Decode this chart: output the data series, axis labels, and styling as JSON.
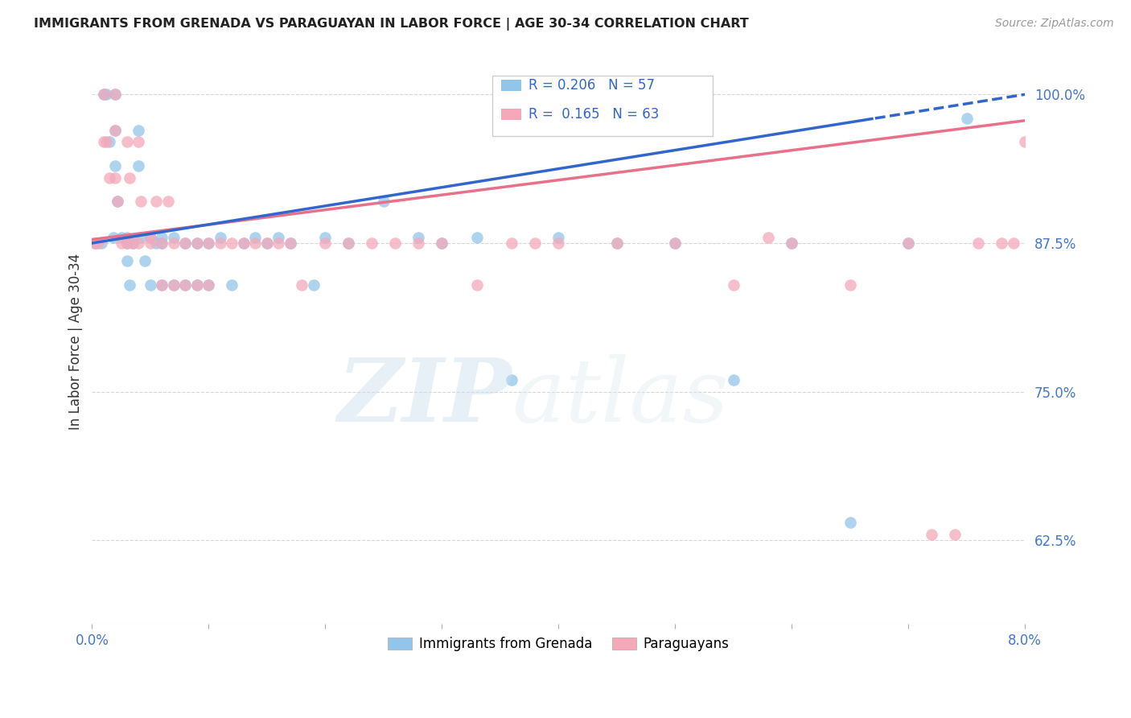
{
  "title": "IMMIGRANTS FROM GRENADA VS PARAGUAYAN IN LABOR FORCE | AGE 30-34 CORRELATION CHART",
  "source": "Source: ZipAtlas.com",
  "ylabel": "In Labor Force | Age 30-34",
  "xlim": [
    0.0,
    0.08
  ],
  "ylim": [
    0.555,
    1.03
  ],
  "xticks": [
    0.0,
    0.01,
    0.02,
    0.03,
    0.04,
    0.05,
    0.06,
    0.07,
    0.08
  ],
  "xticklabels": [
    "0.0%",
    "",
    "",
    "",
    "",
    "",
    "",
    "",
    "8.0%"
  ],
  "yticks": [
    0.625,
    0.75,
    0.875,
    1.0
  ],
  "yticklabels": [
    "62.5%",
    "75.0%",
    "87.5%",
    "100.0%"
  ],
  "blue_R": 0.206,
  "blue_N": 57,
  "pink_R": 0.165,
  "pink_N": 63,
  "blue_color": "#92C5EA",
  "pink_color": "#F4A8BA",
  "blue_label": "Immigrants from Grenada",
  "pink_label": "Paraguayans",
  "blue_line_color": "#3366CC",
  "pink_line_color": "#E8708A",
  "blue_scatter_x": [
    0.0003,
    0.0008,
    0.001,
    0.0012,
    0.0015,
    0.0018,
    0.002,
    0.002,
    0.002,
    0.0022,
    0.0025,
    0.003,
    0.003,
    0.003,
    0.0032,
    0.0035,
    0.004,
    0.004,
    0.0042,
    0.0045,
    0.005,
    0.005,
    0.0055,
    0.006,
    0.006,
    0.006,
    0.007,
    0.007,
    0.008,
    0.008,
    0.009,
    0.009,
    0.01,
    0.01,
    0.011,
    0.012,
    0.013,
    0.014,
    0.015,
    0.016,
    0.017,
    0.019,
    0.02,
    0.022,
    0.025,
    0.028,
    0.03,
    0.033,
    0.036,
    0.04,
    0.045,
    0.05,
    0.055,
    0.06,
    0.065,
    0.07,
    0.075
  ],
  "blue_scatter_y": [
    0.875,
    0.875,
    1.0,
    1.0,
    0.96,
    0.88,
    1.0,
    0.97,
    0.94,
    0.91,
    0.88,
    0.88,
    0.875,
    0.86,
    0.84,
    0.875,
    0.97,
    0.94,
    0.88,
    0.86,
    0.88,
    0.84,
    0.875,
    0.88,
    0.875,
    0.84,
    0.88,
    0.84,
    0.875,
    0.84,
    0.875,
    0.84,
    0.875,
    0.84,
    0.88,
    0.84,
    0.875,
    0.88,
    0.875,
    0.88,
    0.875,
    0.84,
    0.88,
    0.875,
    0.91,
    0.88,
    0.875,
    0.88,
    0.76,
    0.88,
    0.875,
    0.875,
    0.76,
    0.875,
    0.64,
    0.875,
    0.98
  ],
  "pink_scatter_x": [
    0.0002,
    0.0005,
    0.001,
    0.001,
    0.0012,
    0.0015,
    0.002,
    0.002,
    0.002,
    0.0022,
    0.0025,
    0.003,
    0.003,
    0.0032,
    0.0035,
    0.004,
    0.004,
    0.0042,
    0.005,
    0.005,
    0.0055,
    0.006,
    0.006,
    0.0065,
    0.007,
    0.007,
    0.008,
    0.008,
    0.009,
    0.009,
    0.01,
    0.01,
    0.011,
    0.012,
    0.013,
    0.014,
    0.015,
    0.016,
    0.017,
    0.018,
    0.02,
    0.022,
    0.024,
    0.026,
    0.028,
    0.03,
    0.033,
    0.036,
    0.038,
    0.04,
    0.045,
    0.05,
    0.055,
    0.058,
    0.06,
    0.065,
    0.07,
    0.072,
    0.074,
    0.076,
    0.078,
    0.079,
    0.08
  ],
  "pink_scatter_y": [
    0.875,
    0.875,
    1.0,
    0.96,
    0.96,
    0.93,
    1.0,
    0.97,
    0.93,
    0.91,
    0.875,
    0.96,
    0.875,
    0.93,
    0.875,
    0.96,
    0.875,
    0.91,
    0.88,
    0.875,
    0.91,
    0.875,
    0.84,
    0.91,
    0.875,
    0.84,
    0.875,
    0.84,
    0.875,
    0.84,
    0.875,
    0.84,
    0.875,
    0.875,
    0.875,
    0.875,
    0.875,
    0.875,
    0.875,
    0.84,
    0.875,
    0.875,
    0.875,
    0.875,
    0.875,
    0.875,
    0.84,
    0.875,
    0.875,
    0.875,
    0.875,
    0.875,
    0.84,
    0.88,
    0.875,
    0.84,
    0.875,
    0.63,
    0.63,
    0.875,
    0.875,
    0.875,
    0.96
  ]
}
